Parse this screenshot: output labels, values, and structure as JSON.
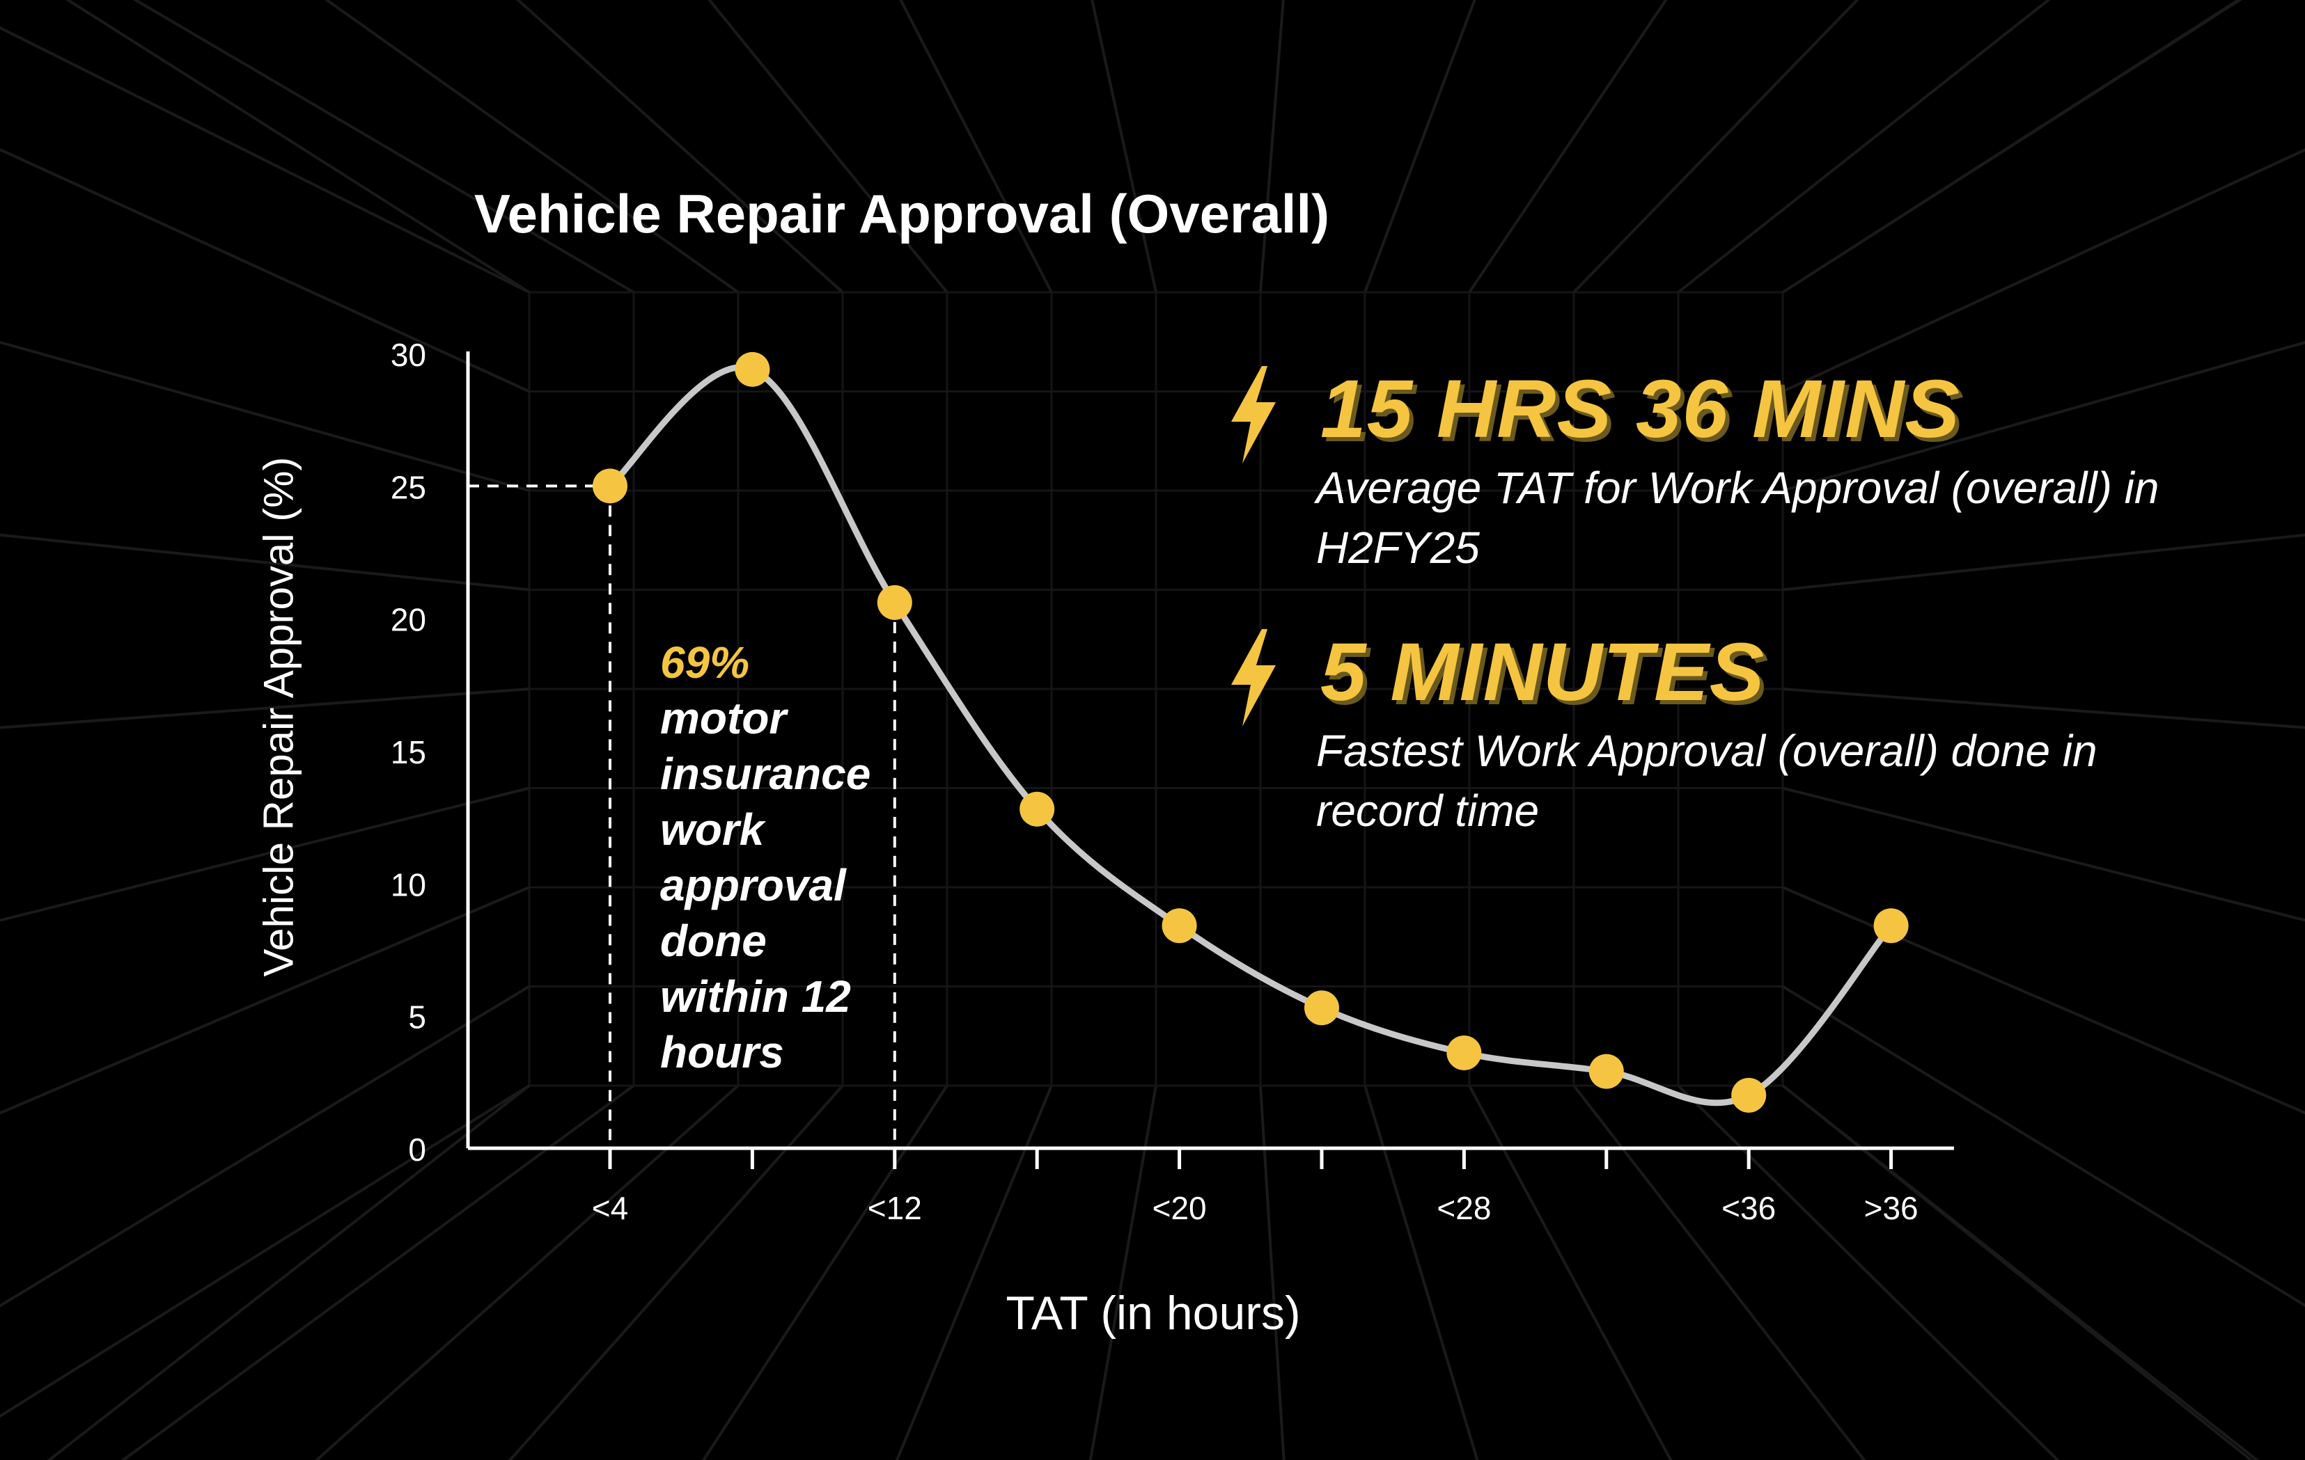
{
  "chart_data": {
    "type": "line",
    "title": "Vehicle Repair Approval (Overall)",
    "xlabel": "TAT (in hours)",
    "ylabel": "Vehicle Repair Approval (%)",
    "categories": [
      "<4",
      "",
      "<12",
      "",
      "<20",
      "",
      "<28",
      "",
      "<36",
      ">36"
    ],
    "series": [
      {
        "values": [
          25.0,
          29.4,
          20.6,
          12.8,
          8.4,
          5.3,
          3.6,
          2.9,
          2.0,
          8.4
        ]
      }
    ],
    "ylim": [
      0,
      30
    ],
    "yticks": [
      0,
      5,
      10,
      15,
      20,
      25,
      30
    ],
    "grid": false,
    "line_color": "#c8c8c8",
    "point_color": "#f5c542",
    "reference_lines": {
      "horizontal_at_y": 25,
      "vertical_at_categories": [
        "<4",
        "<12"
      ]
    }
  },
  "annotation": {
    "percent": "69%",
    "text": "motor insurance work approval done within 12 hours"
  },
  "stats": [
    {
      "icon": "lightning-bolt-icon",
      "headline": "15 HRS 36 MINS",
      "caption": "Average TAT for Work Approval (overall) in H2FY25"
    },
    {
      "icon": "lightning-bolt-icon",
      "headline": "5 MINUTES",
      "caption": "Fastest Work Approval (overall) done in record time"
    }
  ],
  "colors": {
    "background": "#000000",
    "accent": "#f5c542",
    "text": "#ffffff"
  }
}
